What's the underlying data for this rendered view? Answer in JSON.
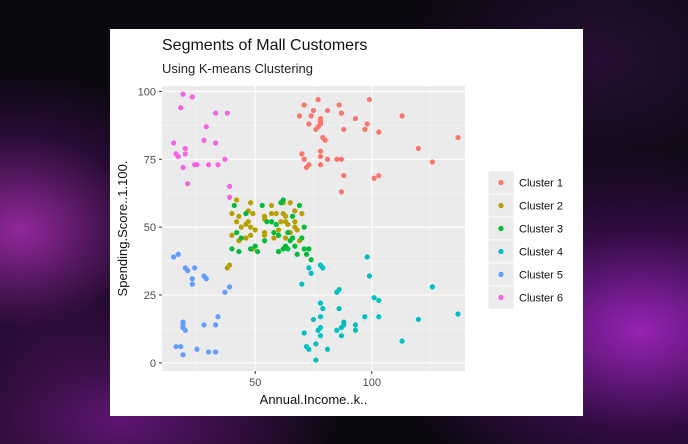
{
  "chart_data": {
    "type": "scatter",
    "title": "Segments of Mall Customers",
    "subtitle": "Using K-means Clustering",
    "xlabel": "Annual.Income..k..",
    "ylabel": "Spending.Score..1.100.",
    "xlim": [
      10,
      140
    ],
    "ylim": [
      -3,
      102
    ],
    "x_ticks": [
      50,
      100
    ],
    "y_ticks": [
      0,
      25,
      50,
      75,
      100
    ],
    "grid": true,
    "legend_position": "right",
    "series": [
      {
        "name": "Cluster 1",
        "color": "#F8766D",
        "points": [
          [
            69,
            91
          ],
          [
            70,
            77
          ],
          [
            71,
            95
          ],
          [
            71,
            75
          ],
          [
            73,
            88
          ],
          [
            73,
            73
          ],
          [
            74,
            91
          ],
          [
            75,
            93
          ],
          [
            76,
            86
          ],
          [
            77,
            87
          ],
          [
            77,
            97
          ],
          [
            78,
            90
          ],
          [
            78,
            88
          ],
          [
            78,
            76
          ],
          [
            78,
            89
          ],
          [
            78,
            78
          ],
          [
            78,
            73
          ],
          [
            79,
            83
          ],
          [
            81,
            93
          ],
          [
            85,
            75
          ],
          [
            86,
            95
          ],
          [
            87,
            63
          ],
          [
            87,
            75
          ],
          [
            87,
            92
          ],
          [
            88,
            86
          ],
          [
            88,
            69
          ],
          [
            93,
            90
          ],
          [
            97,
            86
          ],
          [
            98,
            88
          ],
          [
            99,
            97
          ],
          [
            101,
            68
          ],
          [
            103,
            69
          ],
          [
            103,
            85
          ],
          [
            113,
            91
          ],
          [
            120,
            79
          ],
          [
            126,
            74
          ],
          [
            137,
            83
          ],
          [
            80,
            82
          ],
          [
            81,
            75
          ],
          [
            72,
            72
          ]
        ]
      },
      {
        "name": "Cluster 2",
        "color": "#B79F00",
        "points": [
          [
            38,
            35
          ],
          [
            39,
            36
          ],
          [
            40,
            55
          ],
          [
            40,
            47
          ],
          [
            42,
            52
          ],
          [
            42,
            60
          ],
          [
            43,
            54
          ],
          [
            43,
            45
          ],
          [
            44,
            50
          ],
          [
            46,
            51
          ],
          [
            46,
            46
          ],
          [
            47,
            56
          ],
          [
            47,
            52
          ],
          [
            48,
            59
          ],
          [
            48,
            50
          ],
          [
            48,
            47
          ],
          [
            49,
            55
          ],
          [
            49,
            42
          ],
          [
            50,
            49
          ],
          [
            54,
            54
          ],
          [
            54,
            53
          ],
          [
            54,
            47
          ],
          [
            54,
            48
          ],
          [
            57,
            58
          ],
          [
            57,
            55
          ],
          [
            58,
            46
          ],
          [
            59,
            55
          ],
          [
            60,
            49
          ],
          [
            60,
            47
          ],
          [
            61,
            52
          ],
          [
            62,
            59
          ],
          [
            62,
            55
          ],
          [
            63,
            52
          ],
          [
            63,
            54
          ],
          [
            63,
            46
          ],
          [
            64,
            51
          ],
          [
            65,
            48
          ],
          [
            65,
            59
          ],
          [
            67,
            56
          ],
          [
            67,
            52
          ],
          [
            67,
            50
          ],
          [
            68,
            49
          ],
          [
            69,
            45
          ],
          [
            70,
            55
          ]
        ]
      },
      {
        "name": "Cluster 3",
        "color": "#00BA38",
        "points": [
          [
            40,
            42
          ],
          [
            41,
            58
          ],
          [
            42,
            48
          ],
          [
            43,
            41
          ],
          [
            44,
            46
          ],
          [
            46,
            55
          ],
          [
            48,
            42
          ],
          [
            50,
            43
          ],
          [
            51,
            41
          ],
          [
            53,
            58
          ],
          [
            54,
            45
          ],
          [
            55,
            52
          ],
          [
            57,
            52
          ],
          [
            58,
            48
          ],
          [
            59,
            51
          ],
          [
            60,
            47
          ],
          [
            60,
            41
          ],
          [
            61,
            59
          ],
          [
            62,
            42
          ],
          [
            63,
            43
          ],
          [
            64,
            48
          ],
          [
            64,
            42
          ],
          [
            65,
            45
          ],
          [
            66,
            46
          ],
          [
            67,
            43
          ],
          [
            68,
            40
          ],
          [
            69,
            58
          ],
          [
            70,
            46
          ],
          [
            71,
            50
          ],
          [
            71,
            42
          ],
          [
            72,
            40
          ],
          [
            73,
            42
          ],
          [
            74,
            38
          ],
          [
            62,
            60
          ],
          [
            66,
            54
          ]
        ]
      },
      {
        "name": "Cluster 4",
        "color": "#00BFC4",
        "points": [
          [
            73,
            35
          ],
          [
            74,
            33
          ],
          [
            78,
            36
          ],
          [
            78,
            22
          ],
          [
            78,
            17
          ],
          [
            78,
            10
          ],
          [
            79,
            35
          ],
          [
            70,
            29
          ],
          [
            71,
            11
          ],
          [
            72,
            6
          ],
          [
            73,
            5
          ],
          [
            76,
            1
          ],
          [
            76,
            7
          ],
          [
            77,
            12
          ],
          [
            78,
            13
          ],
          [
            79,
            20
          ],
          [
            81,
            5
          ],
          [
            85,
            26
          ],
          [
            86,
            20
          ],
          [
            86,
            27
          ],
          [
            87,
            13
          ],
          [
            87,
            10
          ],
          [
            88,
            15
          ],
          [
            88,
            14
          ],
          [
            93,
            14
          ],
          [
            97,
            17
          ],
          [
            98,
            39
          ],
          [
            99,
            32
          ],
          [
            101,
            24
          ],
          [
            103,
            23
          ],
          [
            103,
            17
          ],
          [
            113,
            8
          ],
          [
            120,
            16
          ],
          [
            126,
            28
          ],
          [
            137,
            18
          ],
          [
            75,
            16
          ],
          [
            85,
            12
          ],
          [
            93,
            12
          ]
        ]
      },
      {
        "name": "Cluster 5",
        "color": "#619CFF",
        "points": [
          [
            15,
            39
          ],
          [
            16,
            6
          ],
          [
            17,
            40
          ],
          [
            18,
            6
          ],
          [
            19,
            3
          ],
          [
            19,
            14
          ],
          [
            19,
            15
          ],
          [
            19,
            13
          ],
          [
            20,
            35
          ],
          [
            20,
            12
          ],
          [
            23,
            29
          ],
          [
            23,
            31
          ],
          [
            24,
            35
          ],
          [
            25,
            5
          ],
          [
            28,
            14
          ],
          [
            28,
            32
          ],
          [
            29,
            31
          ],
          [
            30,
            4
          ],
          [
            33,
            4
          ],
          [
            33,
            14
          ],
          [
            34,
            17
          ],
          [
            37,
            26
          ],
          [
            39,
            28
          ],
          [
            21,
            34
          ]
        ]
      },
      {
        "name": "Cluster 6",
        "color": "#F564E3",
        "points": [
          [
            15,
            81
          ],
          [
            16,
            77
          ],
          [
            17,
            76
          ],
          [
            18,
            94
          ],
          [
            19,
            99
          ],
          [
            19,
            72
          ],
          [
            20,
            77
          ],
          [
            20,
            79
          ],
          [
            21,
            66
          ],
          [
            23,
            98
          ],
          [
            24,
            73
          ],
          [
            25,
            73
          ],
          [
            28,
            82
          ],
          [
            29,
            87
          ],
          [
            30,
            73
          ],
          [
            33,
            92
          ],
          [
            33,
            81
          ],
          [
            34,
            73
          ],
          [
            37,
            75
          ],
          [
            38,
            92
          ],
          [
            39,
            61
          ],
          [
            39,
            65
          ]
        ]
      }
    ]
  }
}
